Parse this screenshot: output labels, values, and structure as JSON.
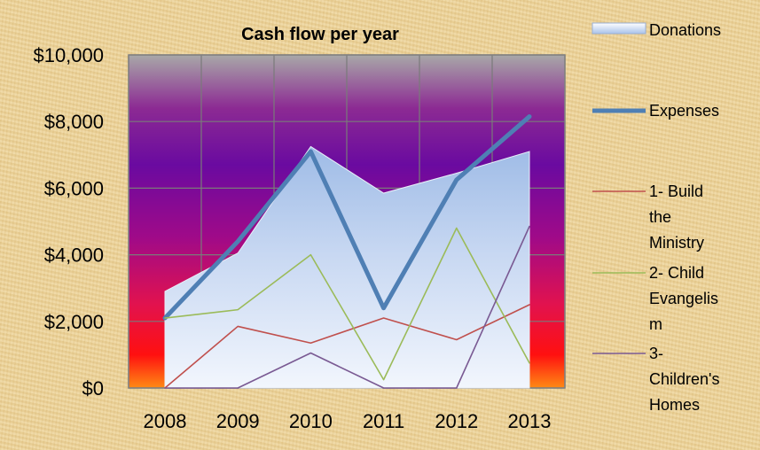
{
  "chart_data": {
    "type": "line",
    "title": "Cash flow per year",
    "categories": [
      "2008",
      "2009",
      "2010",
      "2011",
      "2012",
      "2013"
    ],
    "ylim": [
      0,
      10000
    ],
    "y_ticks": [
      "$0",
      "$2,000",
      "$4,000",
      "$6,000",
      "$8,000",
      "$10,000"
    ],
    "y_tick_values": [
      0,
      2000,
      4000,
      6000,
      8000,
      10000
    ],
    "grid": true,
    "legend_position": "right",
    "series": [
      {
        "name": "Donations",
        "kind": "area",
        "color": "#c9daf3",
        "values": [
          2900,
          4050,
          7250,
          5850,
          6450,
          7100
        ]
      },
      {
        "name": "Expenses",
        "kind": "line",
        "color": "#4f7fb4",
        "values": [
          2100,
          4400,
          7100,
          2400,
          6250,
          8150
        ]
      },
      {
        "name": "1- Build the Ministry",
        "kind": "line",
        "color": "#c0504d",
        "values": [
          0,
          1850,
          1350,
          2100,
          1450,
          2500
        ]
      },
      {
        "name": "2- Child Evangelism",
        "kind": "line",
        "color": "#9bbb59",
        "values": [
          2100,
          2350,
          4000,
          250,
          4800,
          750
        ]
      },
      {
        "name": "3- Children's Homes",
        "kind": "line",
        "color": "#7a5a93",
        "values": [
          0,
          0,
          1050,
          0,
          0,
          4850
        ]
      }
    ],
    "legend_lines": [
      [
        "Donations"
      ],
      [
        "Expenses"
      ],
      [
        "1- Build",
        "the",
        "Ministry"
      ],
      [
        "2- Child",
        "Evangelis",
        "m"
      ],
      [
        "3-",
        "Children's",
        "Homes"
      ]
    ]
  }
}
